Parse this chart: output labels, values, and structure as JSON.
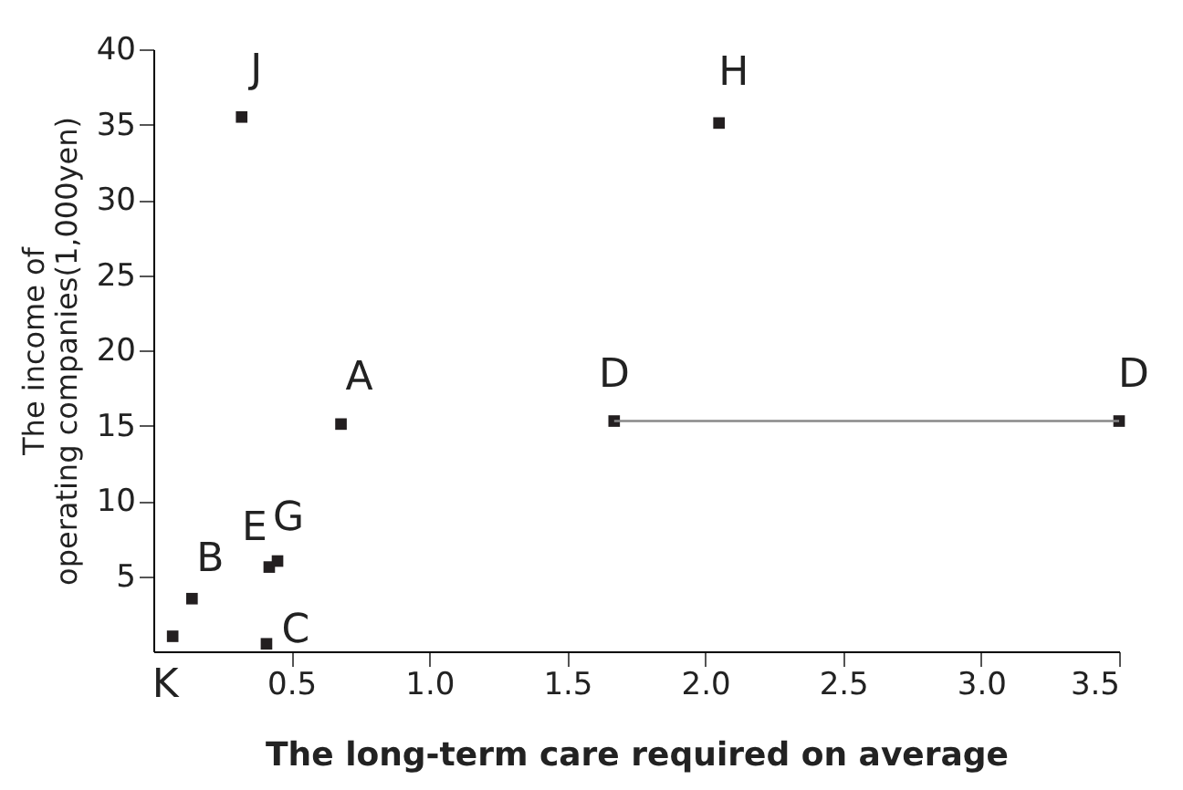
{
  "chart_data": {
    "type": "scatter",
    "xlabel": "The long-term care required on average",
    "ylabel": "The income of operating companies(1,000yen)",
    "xlim": [
      0,
      3.5
    ],
    "xticks": [
      0.5,
      {
        "value": 1,
        "label": "1.0"
      },
      1.5,
      {
        "value": 2,
        "label": "2.0"
      },
      2.5,
      {
        "value": 3,
        "label": "3.0"
      },
      3.5
    ],
    "ylim": [
      0,
      40
    ],
    "yticks": [
      5,
      10,
      15,
      20,
      25,
      30,
      35,
      40
    ],
    "grid": false,
    "marker": "square",
    "series": [
      {
        "color": "#231f20",
        "x": [
          0.32,
          2.05,
          0.68,
          1.67,
          3.5,
          0.42,
          0.45,
          0.14,
          0.07,
          0.41
        ],
        "values": [
          35.5,
          35.1,
          15.1,
          15.3,
          15.3,
          5.6,
          6.0,
          3.5,
          1.0,
          0.5
        ]
      },
      {
        "type": "line",
        "color": "#888888",
        "x": [
          1.67,
          3.5
        ],
        "values": [
          15.3,
          15.3
        ],
        "marker": "none"
      }
    ],
    "annotations": [
      {
        "text": "J",
        "x": 0.32,
        "y": 35.5
      },
      {
        "text": "H",
        "x": 2.05,
        "y": 35.1
      },
      {
        "text": "A",
        "x": 0.68,
        "y": 15.1
      },
      {
        "text": "D",
        "x": 1.67,
        "y": 15.3
      },
      {
        "text": "D",
        "x": 3.5,
        "y": 15.3
      },
      {
        "text": "E",
        "x": 0.42,
        "y": 5.6
      },
      {
        "text": "G",
        "x": 0.45,
        "y": 6.0
      },
      {
        "text": "B",
        "x": 0.14,
        "y": 3.5
      },
      {
        "text": "K",
        "x": 0.07,
        "y": 1.0
      },
      {
        "text": "C",
        "x": 0.41,
        "y": 0.5
      }
    ]
  }
}
